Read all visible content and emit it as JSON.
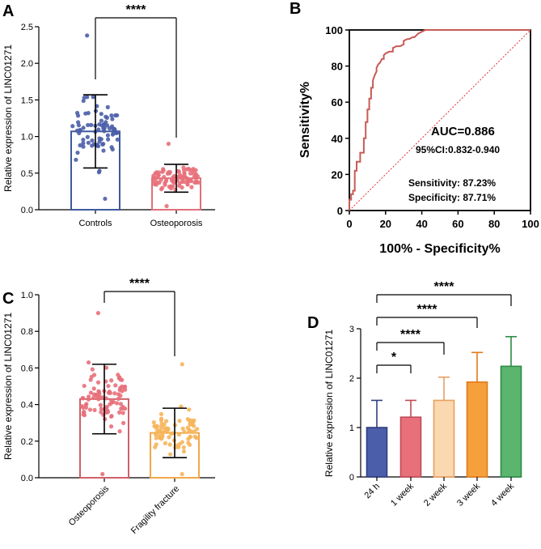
{
  "panels": {
    "a": "A",
    "b": "B",
    "c": "C",
    "d": "D"
  },
  "chart_data": [
    {
      "id": "A",
      "type": "bar",
      "ylabel": "Relative expression of LINC01271",
      "ylim": [
        0,
        2.5
      ],
      "yticks": [
        "0.0",
        "0.5",
        "1.0",
        "1.5",
        "2.0",
        "2.5"
      ],
      "categories": [
        "Controls",
        "Osteoporosis"
      ],
      "values": [
        1.07,
        0.43
      ],
      "sd": [
        0.5,
        0.19
      ],
      "colors": [
        "#3F5A9C",
        "#E0707A"
      ],
      "point_colors": [
        "#4B5EAA",
        "#E8707A"
      ],
      "n_points": [
        80,
        90
      ],
      "point_min": [
        0.15,
        0.05
      ],
      "point_max": [
        2.38,
        0.9
      ],
      "significance": "****"
    },
    {
      "id": "B",
      "type": "line",
      "xlabel": "100% - Specificity%",
      "ylabel": "Sensitivity%",
      "xlim": [
        0,
        100
      ],
      "ylim": [
        0,
        100
      ],
      "xticks": [
        "0",
        "20",
        "40",
        "60",
        "80",
        "100"
      ],
      "yticks": [
        "0",
        "20",
        "40",
        "60",
        "80",
        "100"
      ],
      "roc_x": [
        0,
        0,
        1,
        1,
        2,
        2,
        3,
        3,
        4,
        4,
        5,
        6,
        6,
        7,
        8,
        8,
        9,
        9,
        10,
        10,
        11,
        11,
        12,
        12,
        13,
        13,
        14,
        15,
        15,
        16,
        17,
        18,
        19,
        19,
        20,
        22,
        24,
        24,
        26,
        28,
        30,
        30,
        32,
        33,
        35,
        36,
        37,
        38,
        40,
        42,
        45,
        50,
        60,
        70,
        80,
        90,
        100
      ],
      "roc_y": [
        0,
        6,
        6,
        9,
        9,
        11,
        11,
        22,
        22,
        27,
        27,
        27,
        32,
        32,
        32,
        40,
        40,
        49,
        49,
        56,
        56,
        62,
        62,
        68,
        68,
        72,
        75,
        77,
        79,
        81,
        82,
        84,
        84,
        86,
        87,
        88,
        88,
        90,
        91,
        91,
        92,
        94,
        95,
        95,
        96,
        96,
        97,
        98,
        99,
        100,
        100,
        100,
        100,
        100,
        100,
        100,
        100
      ],
      "line_color": "#C85A55",
      "diagonal_color": "#E03030",
      "auc": "AUC=0.886",
      "ci": "95%CI:0.832-0.940",
      "sensitivity": "Sensitivity: 87.23%",
      "specificity": "Specificity: 87.71%"
    },
    {
      "id": "C",
      "type": "bar",
      "ylabel": "Relative expression of LINC01271",
      "ylim": [
        0,
        1.0
      ],
      "yticks": [
        "0.0",
        "0.2",
        "0.4",
        "0.6",
        "0.8",
        "1.0"
      ],
      "categories": [
        "Osteoporosis",
        "Fragility fracture"
      ],
      "values": [
        0.43,
        0.245
      ],
      "sd": [
        0.19,
        0.135
      ],
      "colors": [
        "#D0606A",
        "#F2A84A"
      ],
      "point_colors": [
        "#E8707A",
        "#F6B55C"
      ],
      "n_points": [
        95,
        80
      ],
      "point_min": [
        0.02,
        0.02
      ],
      "point_max": [
        0.9,
        0.62
      ],
      "significance": "****"
    },
    {
      "id": "D",
      "type": "bar",
      "ylabel": "Relative expression of LINC01271",
      "ylim": [
        0,
        3
      ],
      "yticks": [
        "0",
        "1",
        "2",
        "3"
      ],
      "categories": [
        "24 h",
        "1 week",
        "2 week",
        "3 week",
        "4 week"
      ],
      "values": [
        1.0,
        1.21,
        1.55,
        1.92,
        2.24
      ],
      "sd": [
        0.55,
        0.34,
        0.47,
        0.6,
        0.6
      ],
      "fills": [
        "#4B5EAA",
        "#E8707A",
        "#FAD8B0",
        "#F6A03C",
        "#5BB56E"
      ],
      "strokes": [
        "#2F3F80",
        "#C04A55",
        "#E8A060",
        "#E07A18",
        "#2E8A45"
      ],
      "comparisons": [
        {
          "from": "24 h",
          "to": "1 week",
          "label": "*"
        },
        {
          "from": "24 h",
          "to": "2 week",
          "label": "****"
        },
        {
          "from": "24 h",
          "to": "3 week",
          "label": "****"
        },
        {
          "from": "24 h",
          "to": "4 week",
          "label": "****"
        }
      ]
    }
  ]
}
